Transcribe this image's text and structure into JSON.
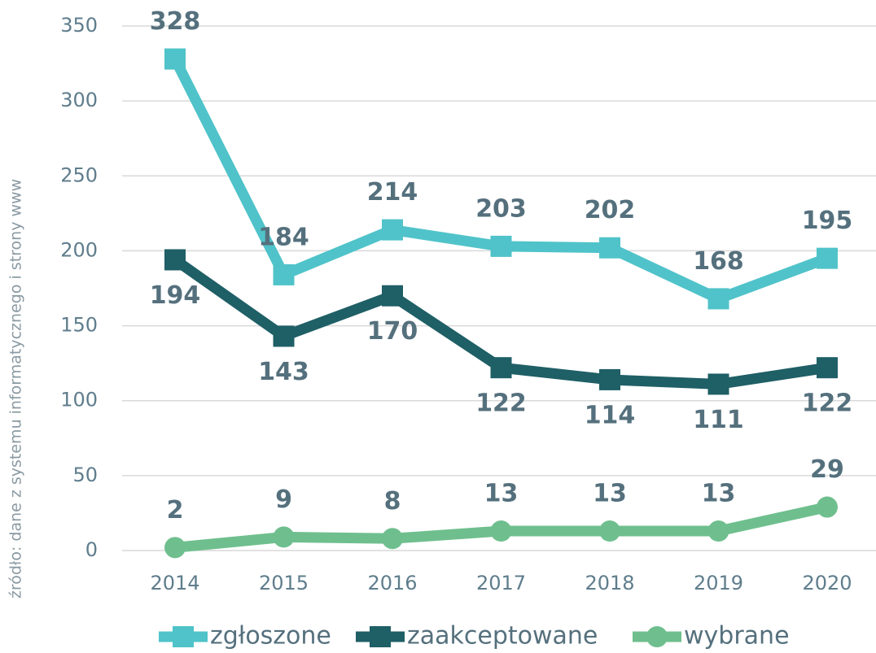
{
  "chart_data": {
    "type": "line",
    "y_label": "źródło: dane z systemu informatycznego i strony www",
    "categories": [
      "2014",
      "2015",
      "2016",
      "2017",
      "2018",
      "2019",
      "2020"
    ],
    "series": [
      {
        "name": "zgłoszone",
        "color": "#4fc3c9",
        "marker": "square",
        "values": [
          328,
          184,
          214,
          203,
          202,
          168,
          195
        ]
      },
      {
        "name": "zaakceptowane",
        "color": "#1f5f66",
        "marker": "square",
        "values": [
          194,
          143,
          170,
          122,
          114,
          111,
          122
        ]
      },
      {
        "name": "wybrane",
        "color": "#6fbf8e",
        "marker": "circle",
        "values": [
          2,
          9,
          8,
          13,
          13,
          13,
          29
        ]
      }
    ],
    "ylim": [
      0,
      350
    ],
    "yticks": [
      0,
      50,
      100,
      150,
      200,
      250,
      300,
      350
    ],
    "grid": true,
    "legend": "bottom"
  }
}
